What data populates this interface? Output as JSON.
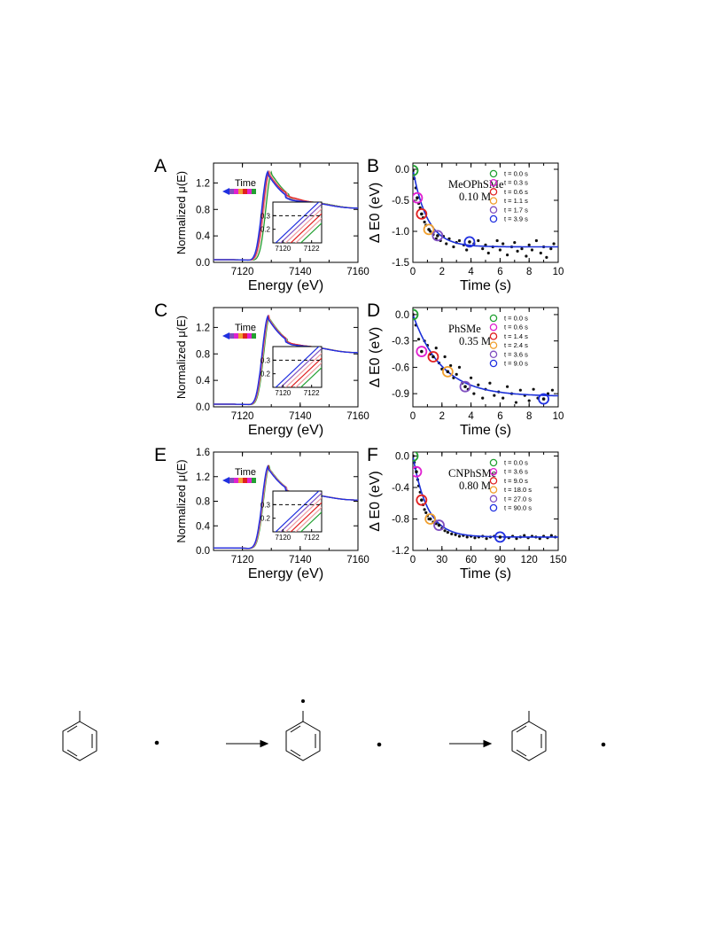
{
  "colors": {
    "green": "#22a032",
    "magenta": "#e020d0",
    "red": "#e02020",
    "orange": "#f0a030",
    "purple": "#8050c0",
    "blue": "#2030e0",
    "pink": "#f09aa0",
    "fit": "#1c30d8"
  },
  "time_label": "Time",
  "chart_data": [
    {
      "panel": "A",
      "type": "line",
      "xlabel": "Energy (eV)",
      "ylabel": "Normalized μ(E)",
      "xlim": [
        7110,
        7160
      ],
      "ylim": [
        0.0,
        1.5
      ],
      "xticks": [
        7120,
        7140,
        7160
      ],
      "yticks": [
        0.0,
        0.4,
        0.8,
        1.2
      ],
      "series": [
        {
          "color": "#22a032",
          "shift": 1.2,
          "wiggle": 0.0
        },
        {
          "color": "#f09aa0",
          "shift": 0.6,
          "wiggle": 0.6
        },
        {
          "color": "#f09aa0",
          "shift": 0.4,
          "wiggle": 0.8
        },
        {
          "color": "#e02020",
          "shift": 0.2,
          "wiggle": 1.0
        },
        {
          "color": "#8050c0",
          "shift": 0.0,
          "wiggle": 0.2
        },
        {
          "color": "#2030e0",
          "shift": -0.2,
          "wiggle": 0.0
        }
      ],
      "inset": {
        "xlim": [
          7119.3,
          7122.7
        ],
        "ylim": [
          0.1,
          0.4
        ],
        "xticks": [
          7120,
          7122
        ],
        "yticks": [
          0.2,
          0.3
        ],
        "dashed_y": 0.3,
        "line_count": 6
      }
    },
    {
      "panel": "B",
      "type": "scatter",
      "xlabel": "Time  (s)",
      "ylabel": "Δ E0 (eV)",
      "annotation": [
        "MeOPhSMe",
        "0.10 M"
      ],
      "xlim": [
        0,
        10
      ],
      "ylim": [
        -1.5,
        0.1
      ],
      "xticks": [
        0,
        2,
        4,
        6,
        8,
        10
      ],
      "yticks": [
        0.0,
        -0.5,
        -1.0,
        -1.5
      ],
      "fit": {
        "a": 1.25,
        "tau": 1.0
      },
      "highlights": [
        {
          "label": "t = 0.0 s",
          "t": 0.0,
          "y": -0.02,
          "color": "#22a032"
        },
        {
          "label": "t = 0.3 s",
          "t": 0.3,
          "y": -0.46,
          "color": "#e020d0"
        },
        {
          "label": "t = 0.6 s",
          "t": 0.6,
          "y": -0.72,
          "color": "#e02020"
        },
        {
          "label": "t = 1.1 s",
          "t": 1.1,
          "y": -0.97,
          "color": "#f0a030"
        },
        {
          "label": "t = 1.7 s",
          "t": 1.7,
          "y": -1.07,
          "color": "#8050c0"
        },
        {
          "label": "t = 3.9 s",
          "t": 3.9,
          "y": -1.17,
          "color": "#2030e0"
        }
      ],
      "points": [
        [
          0.1,
          -0.15
        ],
        [
          0.2,
          -0.3
        ],
        [
          0.4,
          -0.55
        ],
        [
          0.5,
          -0.62
        ],
        [
          0.7,
          -0.78
        ],
        [
          0.8,
          -0.85
        ],
        [
          0.9,
          -0.9
        ],
        [
          1.2,
          -1.0
        ],
        [
          1.4,
          -1.05
        ],
        [
          1.6,
          -1.12
        ],
        [
          1.9,
          -1.15
        ],
        [
          2.1,
          -1.08
        ],
        [
          2.3,
          -1.2
        ],
        [
          2.5,
          -1.12
        ],
        [
          2.8,
          -1.25
        ],
        [
          3.0,
          -1.18
        ],
        [
          3.2,
          -1.15
        ],
        [
          3.5,
          -1.22
        ],
        [
          3.7,
          -1.3
        ],
        [
          4.2,
          -1.2
        ],
        [
          4.5,
          -1.15
        ],
        [
          4.8,
          -1.28
        ],
        [
          5.0,
          -1.22
        ],
        [
          5.2,
          -1.35
        ],
        [
          5.5,
          -1.25
        ],
        [
          5.8,
          -1.15
        ],
        [
          6.0,
          -1.3
        ],
        [
          6.2,
          -1.2
        ],
        [
          6.5,
          -1.38
        ],
        [
          6.8,
          -1.25
        ],
        [
          7.0,
          -1.18
        ],
        [
          7.2,
          -1.32
        ],
        [
          7.5,
          -1.28
        ],
        [
          7.8,
          -1.4
        ],
        [
          8.0,
          -1.22
        ],
        [
          8.2,
          -1.3
        ],
        [
          8.5,
          -1.15
        ],
        [
          8.8,
          -1.35
        ],
        [
          9.0,
          -1.25
        ],
        [
          9.2,
          -1.42
        ],
        [
          9.5,
          -1.28
        ],
        [
          9.7,
          -1.2
        ]
      ]
    },
    {
      "panel": "C",
      "type": "line",
      "xlabel": "Energy (eV)",
      "ylabel": "Normalized μ(E)",
      "xlim": [
        7110,
        7160
      ],
      "ylim": [
        0.0,
        1.5
      ],
      "xticks": [
        7120,
        7140,
        7160
      ],
      "yticks": [
        0.0,
        0.4,
        0.8,
        1.2
      ],
      "series": [
        {
          "color": "#22a032",
          "shift": 0.5,
          "wiggle": 0.0
        },
        {
          "color": "#f09aa0",
          "shift": 0.3,
          "wiggle": 0.2
        },
        {
          "color": "#f09aa0",
          "shift": 0.2,
          "wiggle": 0.3
        },
        {
          "color": "#e02020",
          "shift": 0.1,
          "wiggle": 0.4
        },
        {
          "color": "#8050c0",
          "shift": 0.0,
          "wiggle": 0.1
        },
        {
          "color": "#2030e0",
          "shift": -0.1,
          "wiggle": 0.0
        }
      ],
      "inset": {
        "xlim": [
          7119.3,
          7122.7
        ],
        "ylim": [
          0.1,
          0.4
        ],
        "xticks": [
          7120,
          7122
        ],
        "yticks": [
          0.2,
          0.3
        ],
        "dashed_y": 0.3,
        "line_count": 6
      }
    },
    {
      "panel": "D",
      "type": "scatter",
      "xlabel": "Time  (s)",
      "ylabel": "Δ E0 (eV)",
      "annotation": [
        "PhSMe",
        "0.35 M"
      ],
      "xlim": [
        0,
        10
      ],
      "ylim": [
        -1.05,
        0.08
      ],
      "xticks": [
        0,
        2,
        4,
        6,
        8,
        10
      ],
      "yticks": [
        0.0,
        -0.3,
        -0.6,
        -0.9
      ],
      "fit": {
        "a": 0.93,
        "tau": 2.0
      },
      "highlights": [
        {
          "label": "t = 0.0 s",
          "t": 0.0,
          "y": 0.0,
          "color": "#22a032"
        },
        {
          "label": "t = 0.6 s",
          "t": 0.6,
          "y": -0.42,
          "color": "#e020d0"
        },
        {
          "label": "t = 1.4 s",
          "t": 1.4,
          "y": -0.48,
          "color": "#e02020"
        },
        {
          "label": "t = 2.4 s",
          "t": 2.4,
          "y": -0.65,
          "color": "#f0a030"
        },
        {
          "label": "t = 3.6 s",
          "t": 3.6,
          "y": -0.82,
          "color": "#8050c0"
        },
        {
          "label": "t = 9.0 s",
          "t": 9.0,
          "y": -0.96,
          "color": "#2030e0"
        }
      ],
      "points": [
        [
          0.2,
          -0.12
        ],
        [
          0.4,
          -0.28
        ],
        [
          0.8,
          -0.3
        ],
        [
          1.0,
          -0.35
        ],
        [
          1.2,
          -0.45
        ],
        [
          1.6,
          -0.38
        ],
        [
          1.8,
          -0.55
        ],
        [
          2.0,
          -0.62
        ],
        [
          2.2,
          -0.48
        ],
        [
          2.6,
          -0.58
        ],
        [
          2.8,
          -0.72
        ],
        [
          3.0,
          -0.68
        ],
        [
          3.2,
          -0.6
        ],
        [
          3.4,
          -0.78
        ],
        [
          3.8,
          -0.85
        ],
        [
          4.0,
          -0.72
        ],
        [
          4.2,
          -0.9
        ],
        [
          4.5,
          -0.8
        ],
        [
          4.8,
          -0.95
        ],
        [
          5.0,
          -0.85
        ],
        [
          5.3,
          -0.78
        ],
        [
          5.6,
          -0.92
        ],
        [
          5.9,
          -0.88
        ],
        [
          6.2,
          -0.95
        ],
        [
          6.5,
          -0.82
        ],
        [
          6.8,
          -0.9
        ],
        [
          7.1,
          -1.0
        ],
        [
          7.4,
          -0.86
        ],
        [
          7.7,
          -0.92
        ],
        [
          8.0,
          -0.98
        ],
        [
          8.3,
          -0.85
        ],
        [
          8.6,
          -0.95
        ],
        [
          9.3,
          -0.9
        ],
        [
          9.6,
          -0.86
        ]
      ]
    },
    {
      "panel": "E",
      "type": "line",
      "xlabel": "Energy (eV)",
      "ylabel": "Normalized μ(E)",
      "xlim": [
        7110,
        7160
      ],
      "ylim": [
        0.0,
        1.6
      ],
      "xticks": [
        7120,
        7140,
        7160
      ],
      "yticks": [
        0.0,
        0.4,
        0.8,
        1.2,
        1.6
      ],
      "series": [
        {
          "color": "#22a032",
          "shift": 0.4,
          "wiggle": 0.0
        },
        {
          "color": "#f09aa0",
          "shift": 0.25,
          "wiggle": 0.1
        },
        {
          "color": "#f09aa0",
          "shift": 0.15,
          "wiggle": 0.1
        },
        {
          "color": "#e02020",
          "shift": 0.05,
          "wiggle": 0.1
        },
        {
          "color": "#8050c0",
          "shift": 0.0,
          "wiggle": 0.05
        },
        {
          "color": "#2030e0",
          "shift": -0.1,
          "wiggle": 0.0
        }
      ],
      "inset": {
        "xlim": [
          7119.3,
          7122.7
        ],
        "ylim": [
          0.1,
          0.4
        ],
        "xticks": [
          7120,
          7122
        ],
        "yticks": [
          0.2,
          0.3
        ],
        "dashed_y": 0.3,
        "line_count": 6
      }
    },
    {
      "panel": "F",
      "type": "scatter",
      "xlabel": "Time  (s)",
      "ylabel": "Δ E0 (eV)",
      "annotation": [
        "CNPhSMe",
        "0.80 M"
      ],
      "xlim": [
        0,
        150
      ],
      "ylim": [
        -1.2,
        0.05
      ],
      "xticks": [
        0,
        30,
        60,
        90,
        120,
        150
      ],
      "yticks": [
        0.0,
        -0.4,
        -0.8,
        -1.2
      ],
      "yticklabels": [
        "0.0",
        "-0.4",
        "-0.8",
        "-1.2"
      ],
      "fit": {
        "a": 1.03,
        "tau": 15.0
      },
      "highlights": [
        {
          "label": "t =  0.0 s",
          "t": 0.0,
          "y": 0.0,
          "color": "#22a032"
        },
        {
          "label": "t =  3.6 s",
          "t": 3.6,
          "y": -0.2,
          "color": "#e020d0"
        },
        {
          "label": "t =  9.0 s",
          "t": 9.0,
          "y": -0.56,
          "color": "#e02020"
        },
        {
          "label": "t = 18.0 s",
          "t": 18.0,
          "y": -0.8,
          "color": "#f0a030"
        },
        {
          "label": "t = 27.0 s",
          "t": 27.0,
          "y": -0.88,
          "color": "#8050c0"
        },
        {
          "label": "t = 90.0 s",
          "t": 90.0,
          "y": -1.03,
          "color": "#2030e0"
        }
      ],
      "points": [
        [
          1.5,
          -0.08
        ],
        [
          2.5,
          -0.15
        ],
        [
          5,
          -0.3
        ],
        [
          6,
          -0.38
        ],
        [
          7.5,
          -0.46
        ],
        [
          10.5,
          -0.62
        ],
        [
          12,
          -0.68
        ],
        [
          13.5,
          -0.72
        ],
        [
          15,
          -0.76
        ],
        [
          16.5,
          -0.8
        ],
        [
          21,
          -0.84
        ],
        [
          24,
          -0.86
        ],
        [
          30,
          -0.92
        ],
        [
          33,
          -0.95
        ],
        [
          36,
          -0.97
        ],
        [
          40,
          -0.99
        ],
        [
          44,
          -1.0
        ],
        [
          48,
          -1.02
        ],
        [
          52,
          -1.01
        ],
        [
          56,
          -1.03
        ],
        [
          60,
          -1.02
        ],
        [
          64,
          -1.04
        ],
        [
          68,
          -1.03
        ],
        [
          72,
          -1.02
        ],
        [
          76,
          -1.05
        ],
        [
          80,
          -1.03
        ],
        [
          84,
          -1.02
        ],
        [
          95,
          -1.03
        ],
        [
          99,
          -1.04
        ],
        [
          103,
          -1.02
        ],
        [
          107,
          -1.05
        ],
        [
          111,
          -1.03
        ],
        [
          115,
          -1.01
        ],
        [
          119,
          -1.04
        ],
        [
          123,
          -1.02
        ],
        [
          127,
          -1.03
        ],
        [
          131,
          -1.05
        ],
        [
          135,
          -1.02
        ],
        [
          139,
          -1.04
        ],
        [
          143,
          -1.01
        ],
        [
          147,
          -1.03
        ]
      ]
    }
  ]
}
